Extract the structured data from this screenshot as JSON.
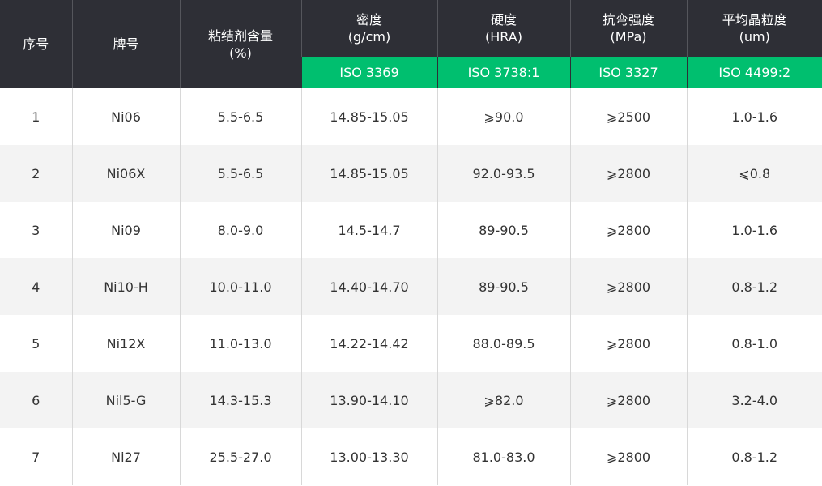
{
  "header": {
    "columns": [
      {
        "title": "序号",
        "unit": ""
      },
      {
        "title": "牌号",
        "unit": ""
      },
      {
        "title": "粘结剂含量",
        "unit": "(%)"
      },
      {
        "title": "密度",
        "unit": "(g/cm)",
        "standard": "ISO 3369"
      },
      {
        "title": "硬度",
        "unit": "(HRA)",
        "standard": "ISO 3738:1"
      },
      {
        "title": "抗弯强度",
        "unit": "(MPa)",
        "standard": "ISO 3327"
      },
      {
        "title": "平均晶粒度",
        "unit": "(um)",
        "standard": "ISO 4499:2"
      }
    ]
  },
  "colors": {
    "header_bg": "#2e2f36",
    "standard_bg": "#00bf6f",
    "alt_row_bg": "#f3f3f3"
  },
  "rows": [
    [
      "1",
      "Ni06",
      "5.5-6.5",
      "14.85-15.05",
      "⩾90.0",
      "⩾2500",
      "1.0-1.6"
    ],
    [
      "2",
      "Ni06X",
      "5.5-6.5",
      "14.85-15.05",
      "92.0-93.5",
      "⩾2800",
      "⩽0.8"
    ],
    [
      "3",
      "Ni09",
      "8.0-9.0",
      "14.5-14.7",
      "89-90.5",
      "⩾2800",
      "1.0-1.6"
    ],
    [
      "4",
      "Ni10-H",
      "10.0-11.0",
      "14.40-14.70",
      "89-90.5",
      "⩾2800",
      "0.8-1.2"
    ],
    [
      "5",
      "Ni12X",
      "11.0-13.0",
      "14.22-14.42",
      "88.0-89.5",
      "⩾2800",
      "0.8-1.0"
    ],
    [
      "6",
      "Nil5-G",
      "14.3-15.3",
      "13.90-14.10",
      "⩾82.0",
      "⩾2800",
      "3.2-4.0"
    ],
    [
      "7",
      "Ni27",
      "25.5-27.0",
      "13.00-13.30",
      "81.0-83.0",
      "⩾2800",
      "0.8-1.2"
    ]
  ]
}
